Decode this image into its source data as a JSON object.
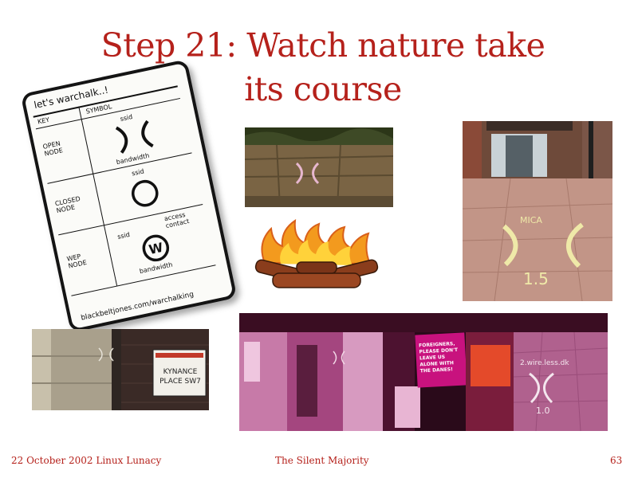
{
  "slide": {
    "title_line1": "Step 21: Watch nature take",
    "title_line2": "its course"
  },
  "card": {
    "title": "let's warchalk..!",
    "col_key": "KEY",
    "col_symbol": "SYMBOL",
    "open_line1": "OPEN",
    "open_line2": "NODE",
    "closed_line1": "CLOSED",
    "closed_line2": "NODE",
    "wep_line1": "WEP",
    "wep_line2": "NODE",
    "ssid": "ssid",
    "bandwidth": "bandwidth",
    "access_line1": "access",
    "access_line2": "contact",
    "w_letter": "W",
    "url": "blackbeltjones.com/warchalking"
  },
  "photos": {
    "sign_line1": "KYNANCE",
    "sign_line2": "PLACE SW7",
    "poster_text": "FOREIGNERS, PLEASE DON'T LEAVE US ALONE WITH THE DANES!",
    "chalk_street": "2.wire.less.dk",
    "chalk_street_bw": "1.0",
    "chalk_plaza_top": "MICA",
    "chalk_plaza_bw": "1.5"
  },
  "footer": {
    "left": "22 October 2002 Linux Lunacy",
    "center": "The Silent Majority",
    "page": "63"
  }
}
